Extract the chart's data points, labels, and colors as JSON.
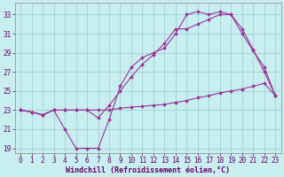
{
  "xlabel": "Windchill (Refroidissement éolien,°C)",
  "bg_color": "#c8eef0",
  "grid_color": "#99cccc",
  "line_color": "#993399",
  "xlim": [
    -0.5,
    23.5
  ],
  "ylim": [
    18.5,
    34.2
  ],
  "xticks": [
    0,
    1,
    2,
    3,
    4,
    5,
    6,
    7,
    8,
    9,
    10,
    11,
    12,
    13,
    14,
    15,
    16,
    17,
    18,
    19,
    20,
    21,
    22,
    23
  ],
  "yticks": [
    19,
    21,
    23,
    25,
    27,
    29,
    31,
    33
  ],
  "line1_x": [
    0,
    1,
    2,
    3,
    4,
    5,
    6,
    7,
    8,
    9,
    10,
    11,
    12,
    13,
    14,
    15,
    16,
    17,
    18,
    19,
    20,
    21,
    22,
    23
  ],
  "line1_y": [
    23.0,
    22.8,
    22.5,
    23.0,
    21.0,
    19.0,
    19.0,
    19.0,
    22.0,
    25.5,
    27.5,
    28.5,
    29.0,
    29.5,
    31.0,
    33.0,
    33.3,
    33.0,
    33.3,
    33.0,
    31.5,
    29.3,
    27.0,
    24.5
  ],
  "line2_x": [
    0,
    1,
    2,
    3,
    4,
    5,
    6,
    7,
    8,
    9,
    10,
    11,
    12,
    13,
    14,
    15,
    16,
    17,
    18,
    19,
    20,
    21,
    22,
    23
  ],
  "line2_y": [
    23.0,
    22.8,
    22.5,
    23.0,
    23.0,
    23.0,
    23.0,
    23.0,
    23.0,
    23.2,
    23.3,
    23.4,
    23.5,
    23.6,
    23.8,
    24.0,
    24.3,
    24.5,
    24.8,
    25.0,
    25.2,
    25.5,
    25.8,
    24.5
  ],
  "line3_x": [
    0,
    1,
    2,
    3,
    4,
    5,
    6,
    7,
    8,
    9,
    10,
    11,
    12,
    13,
    14,
    15,
    16,
    17,
    18,
    19,
    20,
    21,
    22,
    23
  ],
  "line3_y": [
    23.0,
    22.8,
    22.5,
    23.0,
    23.0,
    23.0,
    23.0,
    22.2,
    23.5,
    25.0,
    26.5,
    27.8,
    28.8,
    30.0,
    31.5,
    31.5,
    32.0,
    32.5,
    33.0,
    33.0,
    31.0,
    29.2,
    27.5,
    24.5
  ],
  "font_color": "#660066",
  "tick_fontsize": 5.5,
  "label_fontsize": 6.0,
  "line_width": 0.8,
  "marker_size": 2.0
}
